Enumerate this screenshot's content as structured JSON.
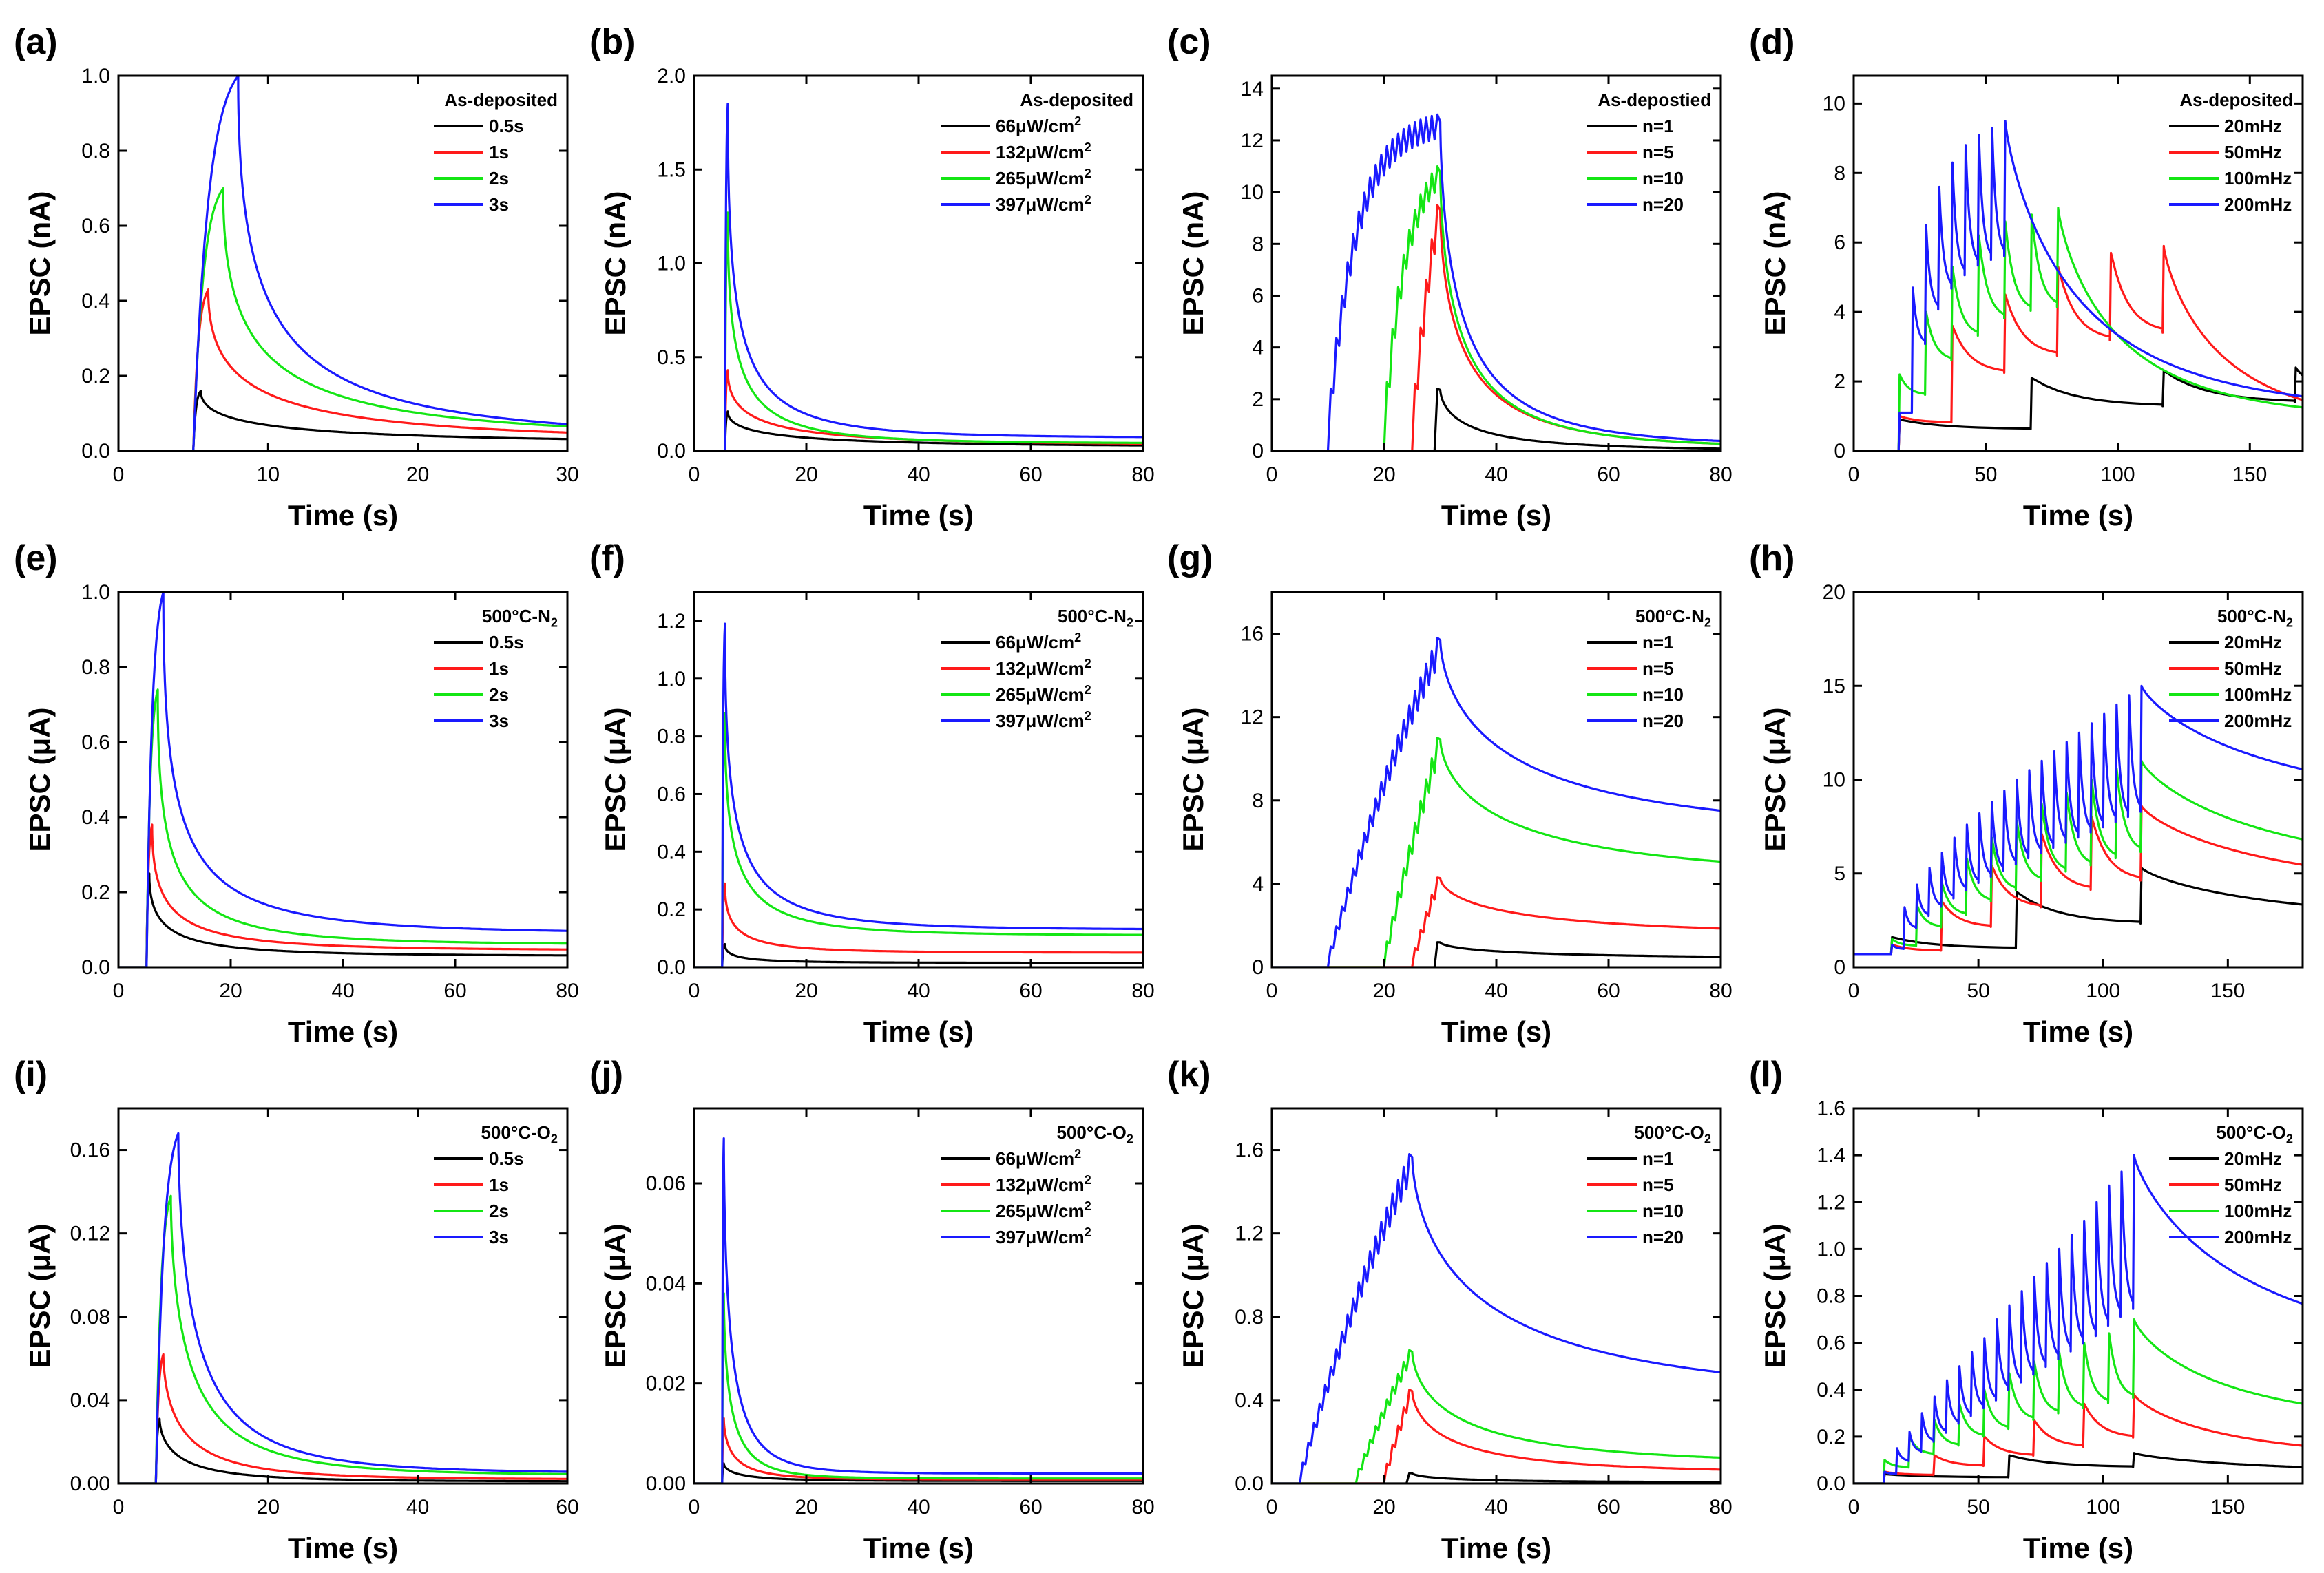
{
  "figure": {
    "colors": {
      "black": "#000000",
      "red": "#ff1a1a",
      "green": "#14e614",
      "blue": "#1a1aff"
    },
    "x_label": "Time (s)"
  },
  "chart_data": [
    {
      "panel": "(a)",
      "type": "line",
      "title": "As-deposited",
      "ylabel": "EPSC (nA)",
      "xlabel": "Time (s)",
      "xlim": [
        0,
        30
      ],
      "ylim": [
        0,
        1.0
      ],
      "xticks": [
        0,
        10,
        20,
        30
      ],
      "yticks": [
        0.0,
        0.2,
        0.4,
        0.6,
        0.8,
        1.0
      ],
      "xtick_labels": [
        "0",
        "10",
        "20",
        "30"
      ],
      "ytick_labels": [
        "0.0",
        "0.2",
        "0.4",
        "0.6",
        "0.8",
        "1.0"
      ],
      "kind": "pulse",
      "start": 5,
      "series": [
        {
          "name": "0.5s",
          "color": "black",
          "dur": 0.5,
          "peak": 0.16,
          "end": 0.02,
          "tau": 4,
          "p": 0.5
        },
        {
          "name": "1s",
          "color": "red",
          "dur": 1,
          "peak": 0.43,
          "end": 0.025,
          "tau": 3,
          "p": 0.5
        },
        {
          "name": "2s",
          "color": "green",
          "dur": 2,
          "peak": 0.7,
          "end": 0.033,
          "tau": 2.5,
          "p": 0.5
        },
        {
          "name": "3s",
          "color": "blue",
          "dur": 3,
          "peak": 1.0,
          "end": 0.03,
          "tau": 2.2,
          "p": 0.5
        }
      ]
    },
    {
      "panel": "(b)",
      "type": "line",
      "title": "As-deposited",
      "ylabel": "EPSC (nA)",
      "xlabel": "Time (s)",
      "xlim": [
        0,
        80
      ],
      "ylim": [
        0,
        2.0
      ],
      "xticks": [
        0,
        20,
        40,
        60,
        80
      ],
      "yticks": [
        0.0,
        0.5,
        1.0,
        1.5,
        2.0
      ],
      "xtick_labels": [
        "0",
        "20",
        "40",
        "60",
        "80"
      ],
      "ytick_labels": [
        "0.0",
        "0.5",
        "1.0",
        "1.5",
        "2.0"
      ],
      "kind": "pulse",
      "start": 5.5,
      "series": [
        {
          "name": "66μW/cm²",
          "color": "black",
          "dur": 0.5,
          "peak": 0.21,
          "end": 0.02,
          "tau": 8,
          "p": 0.5
        },
        {
          "name": "132μW/cm²",
          "color": "red",
          "dur": 0.5,
          "peak": 0.43,
          "end": 0.03,
          "tau": 5,
          "p": 0.5
        },
        {
          "name": "265μW/cm²",
          "color": "green",
          "dur": 0.5,
          "peak": 1.27,
          "end": 0.04,
          "tau": 2,
          "p": 0.5
        },
        {
          "name": "397μW/cm²",
          "color": "blue",
          "dur": 0.5,
          "peak": 1.85,
          "end": 0.07,
          "tau": 2,
          "p": 0.5
        }
      ]
    },
    {
      "panel": "(c)",
      "type": "line",
      "title": "As-depostied",
      "ylabel": "EPSC (nA)",
      "xlabel": "Time (s)",
      "xlim": [
        0,
        80
      ],
      "ylim": [
        0,
        14.5
      ],
      "xticks": [
        0,
        20,
        40,
        60,
        80
      ],
      "yticks": [
        0,
        2,
        4,
        6,
        8,
        10,
        12,
        14
      ],
      "xtick_labels": [
        "0",
        "20",
        "40",
        "60",
        "80"
      ],
      "ytick_labels": [
        "0",
        "2",
        "4",
        "6",
        "8",
        "10",
        "12",
        "14"
      ],
      "kind": "train",
      "end_time": 30,
      "period": 1,
      "series": [
        {
          "name": "n=1",
          "color": "black",
          "n": 1,
          "peak": 2.4,
          "sat": 6,
          "end": 0.02,
          "tau": 6,
          "p": 0.6
        },
        {
          "name": "n=5",
          "color": "red",
          "n": 5,
          "peak": 9.5,
          "sat": 6,
          "end": 0.1,
          "tau": 5,
          "p": 0.6
        },
        {
          "name": "n=10",
          "color": "green",
          "n": 10,
          "peak": 11.0,
          "sat": 4,
          "end": 0.12,
          "tau": 4.5,
          "p": 0.6
        },
        {
          "name": "n=20",
          "color": "blue",
          "n": 20,
          "peak": 13.0,
          "sat": 5,
          "end": 0.2,
          "tau": 4.5,
          "p": 0.6
        }
      ]
    },
    {
      "panel": "(d)",
      "type": "line",
      "title": "As-deposited",
      "ylabel": "EPSC (nA)",
      "xlabel": "Time (s)",
      "xlim": [
        0,
        170
      ],
      "ylim": [
        0,
        10.8
      ],
      "xticks": [
        0,
        50,
        100,
        150
      ],
      "yticks": [
        0,
        2,
        4,
        6,
        8,
        10
      ],
      "xtick_labels": [
        "0",
        "50",
        "100",
        "150"
      ],
      "ytick_labels": [
        "0",
        "2",
        "4",
        "6",
        "8",
        "10"
      ],
      "kind": "freq",
      "start": 17,
      "end_time": 120,
      "series": [
        {
          "name": "20mHz",
          "color": "black",
          "f": 0.02,
          "peaks": [
            0.9,
            2.1,
            2.3,
            2.4
          ],
          "baseline": 0.3,
          "tau": 40,
          "end": 0.3
        },
        {
          "name": "50mHz",
          "color": "red",
          "f": 0.05,
          "peaks": [
            1.0,
            3.6,
            4.5,
            5.3,
            5.7,
            5.9
          ],
          "baseline": 0.6,
          "tau": 25,
          "end": 0.6
        },
        {
          "name": "100mHz",
          "color": "green",
          "f": 0.1,
          "peaks": [
            2.2,
            4.0,
            5.3,
            6.2,
            6.6,
            6.8,
            7.0
          ],
          "baseline": 0.9,
          "tau": 25,
          "end": 0.9
        },
        {
          "name": "200mHz",
          "color": "blue",
          "f": 0.2,
          "peaks": [
            1.1,
            4.7,
            6.5,
            7.6,
            8.3,
            8.8,
            9.1,
            9.3,
            9.5
          ],
          "baseline": 1.1,
          "tau": 30,
          "end": 1.1
        }
      ]
    },
    {
      "panel": "(e)",
      "type": "line",
      "title": "500°C-N₂",
      "ylabel": "EPSC (μA)",
      "xlabel": "Time (s)",
      "xlim": [
        0,
        80
      ],
      "ylim": [
        0,
        1.0
      ],
      "xticks": [
        0,
        20,
        40,
        60,
        80
      ],
      "yticks": [
        0.0,
        0.2,
        0.4,
        0.6,
        0.8,
        1.0
      ],
      "xtick_labels": [
        "0",
        "20",
        "40",
        "60",
        "80"
      ],
      "ytick_labels": [
        "0.0",
        "0.2",
        "0.4",
        "0.6",
        "0.8",
        "1.0"
      ],
      "kind": "pulse",
      "start": 5,
      "series": [
        {
          "name": "0.5s",
          "color": "black",
          "dur": 0.5,
          "peak": 0.25,
          "end": 0.03,
          "tau": 3,
          "p": 0.5
        },
        {
          "name": "1s",
          "color": "red",
          "dur": 1,
          "peak": 0.38,
          "end": 0.045,
          "tau": 3,
          "p": 0.5
        },
        {
          "name": "2s",
          "color": "green",
          "dur": 2,
          "peak": 0.74,
          "end": 0.06,
          "tau": 2.5,
          "p": 0.5
        },
        {
          "name": "3s",
          "color": "blue",
          "dur": 3,
          "peak": 1.0,
          "end": 0.09,
          "tau": 3,
          "p": 0.5
        }
      ]
    },
    {
      "panel": "(f)",
      "type": "line",
      "title": "500°C-N₂",
      "ylabel": "EPSC (μA)",
      "xlabel": "Time (s)",
      "xlim": [
        0,
        80
      ],
      "ylim": [
        0,
        1.3
      ],
      "xticks": [
        0,
        20,
        40,
        60,
        80
      ],
      "yticks": [
        0.0,
        0.2,
        0.4,
        0.6,
        0.8,
        1.0,
        1.2
      ],
      "xtick_labels": [
        "0",
        "20",
        "40",
        "60",
        "80"
      ],
      "ytick_labels": [
        "0.0",
        "0.2",
        "0.4",
        "0.6",
        "0.8",
        "1.0",
        "1.2"
      ],
      "kind": "pulse",
      "start": 5,
      "series": [
        {
          "name": "66μW/cm²",
          "color": "black",
          "dur": 0.5,
          "peak": 0.08,
          "end": 0.015,
          "tau": 2,
          "p": 0.5
        },
        {
          "name": "132μW/cm²",
          "color": "red",
          "dur": 0.5,
          "peak": 0.29,
          "end": 0.05,
          "tau": 2,
          "p": 0.5
        },
        {
          "name": "265μW/cm²",
          "color": "green",
          "dur": 0.5,
          "peak": 0.88,
          "end": 0.11,
          "tau": 2,
          "p": 0.5
        },
        {
          "name": "397μW/cm²",
          "color": "blue",
          "dur": 0.5,
          "peak": 1.19,
          "end": 0.13,
          "tau": 2,
          "p": 0.5
        }
      ]
    },
    {
      "panel": "(g)",
      "type": "line",
      "title": "500°C-N₂",
      "ylabel": "EPSC (μA)",
      "xlabel": "Time (s)",
      "xlim": [
        0,
        80
      ],
      "ylim": [
        0,
        18
      ],
      "xticks": [
        0,
        20,
        40,
        60,
        80
      ],
      "yticks": [
        0,
        4,
        8,
        12,
        16
      ],
      "xtick_labels": [
        "0",
        "20",
        "40",
        "60",
        "80"
      ],
      "ytick_labels": [
        "0",
        "4",
        "8",
        "12",
        "16"
      ],
      "kind": "train",
      "end_time": 30,
      "period": 1,
      "series": [
        {
          "name": "n=1",
          "color": "black",
          "n": 1,
          "peak": 1.2,
          "sat": 40,
          "end": 0.4,
          "tau": 15,
          "p": 0.6
        },
        {
          "name": "n=5",
          "color": "red",
          "n": 5,
          "peak": 4.3,
          "sat": 40,
          "end": 1.5,
          "tau": 15,
          "p": 0.6
        },
        {
          "name": "n=10",
          "color": "green",
          "n": 10,
          "peak": 11.0,
          "sat": 40,
          "end": 4.2,
          "tau": 15,
          "p": 0.6
        },
        {
          "name": "n=20",
          "color": "blue",
          "n": 20,
          "peak": 15.8,
          "sat": 40,
          "end": 6.3,
          "tau": 15,
          "p": 0.6
        }
      ]
    },
    {
      "panel": "(h)",
      "type": "line",
      "title": "500°C-N₂",
      "ylabel": "EPSC (μA)",
      "xlabel": "Time (s)",
      "xlim": [
        0,
        180
      ],
      "ylim": [
        0,
        20
      ],
      "xticks": [
        0,
        50,
        100,
        150
      ],
      "yticks": [
        0,
        5,
        10,
        15,
        20
      ],
      "xtick_labels": [
        "0",
        "50",
        "100",
        "150"
      ],
      "ytick_labels": [
        "0",
        "5",
        "10",
        "15",
        "20"
      ],
      "kind": "freq",
      "start": 15,
      "end_time": 115,
      "pre": 0.7,
      "series": [
        {
          "name": "20mHz",
          "color": "black",
          "f": 0.02,
          "peaks": [
            1.6,
            4.0,
            5.3
          ],
          "baseline": 0.3,
          "tau": 60,
          "end": 2.3
        },
        {
          "name": "50mHz",
          "color": "red",
          "f": 0.05,
          "peaks": [
            1.2,
            3.5,
            5.4,
            7.1,
            8.0,
            8.6
          ],
          "baseline": 0.5,
          "tau": 60,
          "end": 3.8
        },
        {
          "name": "100mHz",
          "color": "green",
          "f": 0.1,
          "peaks": [
            1.5,
            3.3,
            4.5,
            5.8,
            6.9,
            7.8,
            8.7,
            9.3,
            10.0,
            10.6,
            11.0
          ],
          "baseline": 0.7,
          "tau": 60,
          "end": 4.6
        },
        {
          "name": "200mHz",
          "color": "blue",
          "f": 0.2,
          "peaks": [
            1.2,
            3.2,
            4.4,
            5.3,
            6.1,
            6.9,
            7.6,
            8.2,
            8.8,
            9.4,
            10.0,
            10.5,
            11.0,
            11.5,
            12.0,
            12.5,
            13.0,
            13.5,
            14.0,
            14.5,
            15.0
          ],
          "baseline": 0.7,
          "tau": 60,
          "end": 8.2
        }
      ]
    },
    {
      "panel": "(i)",
      "type": "line",
      "title": "500°C-O₂",
      "ylabel": "EPSC (μA)",
      "xlabel": "Time (s)",
      "xlim": [
        0,
        60
      ],
      "ylim": [
        0,
        0.18
      ],
      "xticks": [
        0,
        20,
        40,
        60
      ],
      "yticks": [
        0.0,
        0.04,
        0.08,
        0.12,
        0.16
      ],
      "xtick_labels": [
        "0",
        "20",
        "40",
        "60"
      ],
      "ytick_labels": [
        "0.00",
        "0.04",
        "0.08",
        "0.12",
        "0.16"
      ],
      "kind": "pulse",
      "start": 5,
      "series": [
        {
          "name": "0.5s",
          "color": "black",
          "dur": 0.5,
          "peak": 0.031,
          "end": 0.001,
          "tau": 3,
          "p": 0.6
        },
        {
          "name": "1s",
          "color": "red",
          "dur": 1,
          "peak": 0.062,
          "end": 0.002,
          "tau": 3,
          "p": 0.6
        },
        {
          "name": "2s",
          "color": "green",
          "dur": 2,
          "peak": 0.138,
          "end": 0.004,
          "tau": 3,
          "p": 0.6
        },
        {
          "name": "3s",
          "color": "blue",
          "dur": 3,
          "peak": 0.168,
          "end": 0.005,
          "tau": 3,
          "p": 0.6
        }
      ]
    },
    {
      "panel": "(j)",
      "type": "line",
      "title": "500°C-O₂",
      "ylabel": "EPSC (μA)",
      "xlabel": "Time (s)",
      "xlim": [
        0,
        80
      ],
      "ylim": [
        0,
        0.075
      ],
      "xticks": [
        0,
        20,
        40,
        60,
        80
      ],
      "yticks": [
        0.0,
        0.02,
        0.04,
        0.06
      ],
      "xtick_labels": [
        "0",
        "20",
        "40",
        "60",
        "80"
      ],
      "ytick_labels": [
        "0.00",
        "0.02",
        "0.04",
        "0.06"
      ],
      "kind": "pulse",
      "start": 5,
      "series": [
        {
          "name": "66μW/cm²",
          "color": "black",
          "dur": 0.3,
          "peak": 0.004,
          "end": 0.0005,
          "tau": 3,
          "p": 0.6
        },
        {
          "name": "132μW/cm²",
          "color": "red",
          "dur": 0.3,
          "peak": 0.013,
          "end": 0.0008,
          "tau": 2,
          "p": 0.6
        },
        {
          "name": "265μW/cm²",
          "color": "green",
          "dur": 0.3,
          "peak": 0.038,
          "end": 0.001,
          "tau": 1.5,
          "p": 0.6
        },
        {
          "name": "397μW/cm²",
          "color": "blue",
          "dur": 0.3,
          "peak": 0.069,
          "end": 0.002,
          "tau": 1.5,
          "p": 0.6
        }
      ]
    },
    {
      "panel": "(k)",
      "type": "line",
      "title": "500°C-O₂",
      "ylabel": "EPSC (μA)",
      "xlabel": "Time (s)",
      "xlim": [
        0,
        80
      ],
      "ylim": [
        0,
        1.8
      ],
      "xticks": [
        0,
        20,
        40,
        60,
        80
      ],
      "yticks": [
        0.0,
        0.4,
        0.8,
        1.2,
        1.6
      ],
      "xtick_labels": [
        "0",
        "20",
        "40",
        "60",
        "80"
      ],
      "ytick_labels": [
        "0.0",
        "0.4",
        "0.8",
        "1.2",
        "1.6"
      ],
      "kind": "train",
      "end_time": 25,
      "period": 1,
      "series": [
        {
          "name": "n=1",
          "color": "black",
          "n": 1,
          "peak": 0.05,
          "sat": 40,
          "end": 0.005,
          "tau": 8,
          "p": 0.6
        },
        {
          "name": "n=5",
          "color": "red",
          "n": 5,
          "peak": 0.45,
          "sat": 40,
          "end": 0.05,
          "tau": 8,
          "p": 0.6
        },
        {
          "name": "n=10",
          "color": "green",
          "n": 10,
          "peak": 0.64,
          "sat": 40,
          "end": 0.09,
          "tau": 10,
          "p": 0.6
        },
        {
          "name": "n=20",
          "color": "blue",
          "n": 20,
          "peak": 1.58,
          "sat": 40,
          "end": 0.4,
          "tau": 15,
          "p": 0.6
        }
      ]
    },
    {
      "panel": "(l)",
      "type": "line",
      "title": "500°C-O₂",
      "ylabel": "EPSC (μA)",
      "xlabel": "Time (s)",
      "xlim": [
        0,
        180
      ],
      "ylim": [
        0,
        1.6
      ],
      "xticks": [
        0,
        50,
        100,
        150
      ],
      "yticks": [
        0.0,
        0.2,
        0.4,
        0.6,
        0.8,
        1.0,
        1.2,
        1.4,
        1.6
      ],
      "xtick_labels": [
        "0",
        "50",
        "100",
        "150"
      ],
      "ytick_labels": [
        "0.0",
        "0.2",
        "0.4",
        "0.6",
        "0.8",
        "1.0",
        "1.2",
        "1.4",
        "1.6"
      ],
      "kind": "freq",
      "start": 12,
      "end_time": 112,
      "series": [
        {
          "name": "20mHz",
          "color": "black",
          "f": 0.02,
          "peaks": [
            0.04,
            0.12,
            0.13
          ],
          "baseline": 0.01,
          "tau": 60,
          "end": 0.04
        },
        {
          "name": "50mHz",
          "color": "red",
          "f": 0.05,
          "peaks": [
            0.05,
            0.12,
            0.2,
            0.27,
            0.34,
            0.38
          ],
          "baseline": 0.02,
          "tau": 40,
          "end": 0.1
        },
        {
          "name": "100mHz",
          "color": "green",
          "f": 0.1,
          "peaks": [
            0.1,
            0.2,
            0.27,
            0.34,
            0.4,
            0.47,
            0.52,
            0.56,
            0.6,
            0.64,
            0.7
          ],
          "baseline": 0.03,
          "tau": 40,
          "end": 0.24
        },
        {
          "name": "200mHz",
          "color": "blue",
          "f": 0.2,
          "peaks": [
            0.05,
            0.15,
            0.22,
            0.3,
            0.37,
            0.44,
            0.5,
            0.56,
            0.62,
            0.7,
            0.76,
            0.82,
            0.88,
            0.94,
            1.0,
            1.06,
            1.12,
            1.2,
            1.27,
            1.33,
            1.4
          ],
          "baseline": 0.03,
          "tau": 50,
          "end": 0.52
        }
      ]
    }
  ]
}
